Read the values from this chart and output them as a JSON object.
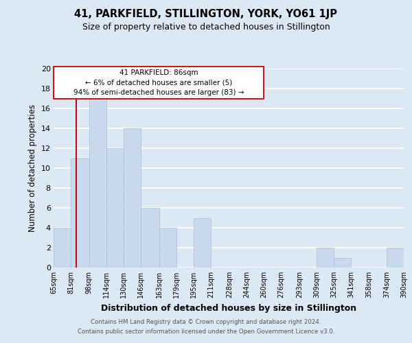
{
  "title": "41, PARKFIELD, STILLINGTON, YORK, YO61 1JP",
  "subtitle": "Size of property relative to detached houses in Stillington",
  "xlabel": "Distribution of detached houses by size in Stillington",
  "ylabel": "Number of detached properties",
  "footer_lines": [
    "Contains HM Land Registry data © Crown copyright and database right 2024.",
    "Contains public sector information licensed under the Open Government Licence v3.0."
  ],
  "bar_edges": [
    65,
    81,
    98,
    114,
    130,
    146,
    163,
    179,
    195,
    211,
    228,
    244,
    260,
    276,
    293,
    309,
    325,
    341,
    358,
    374,
    390
  ],
  "bar_heights": [
    4,
    11,
    17,
    12,
    14,
    6,
    4,
    0,
    5,
    0,
    0,
    0,
    0,
    0,
    0,
    2,
    1,
    0,
    0,
    2
  ],
  "bar_color": "#c9d9ed",
  "bar_edgecolor": "#aabdd6",
  "bar_linewidth": 0.5,
  "grid_color": "#ffffff",
  "background_color": "#dce9f5",
  "ylim": [
    0,
    20
  ],
  "yticks": [
    0,
    2,
    4,
    6,
    8,
    10,
    12,
    14,
    16,
    18,
    20
  ],
  "property_line_x": 86,
  "property_line_color": "#cc0000",
  "annotation_line1": "41 PARKFIELD: 86sqm",
  "annotation_line2": "← 6% of detached houses are smaller (5)",
  "annotation_line3": "94% of semi-detached houses are larger (83) →",
  "tick_labels": [
    "65sqm",
    "81sqm",
    "98sqm",
    "114sqm",
    "130sqm",
    "146sqm",
    "163sqm",
    "179sqm",
    "195sqm",
    "211sqm",
    "228sqm",
    "244sqm",
    "260sqm",
    "276sqm",
    "293sqm",
    "309sqm",
    "325sqm",
    "341sqm",
    "358sqm",
    "374sqm",
    "390sqm"
  ]
}
